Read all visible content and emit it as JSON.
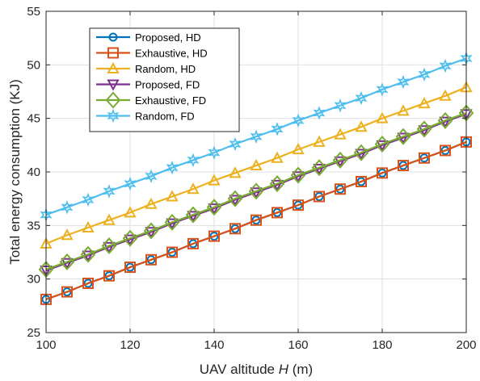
{
  "chart_data": {
    "type": "line",
    "xlabel_prefix": "UAV altitude ",
    "xlabel_var": "H",
    "xlabel_suffix": " (m)",
    "ylabel": "Total energy consumption (KJ)",
    "xlim": [
      100,
      200
    ],
    "ylim": [
      25,
      55
    ],
    "xticks": [
      100,
      120,
      140,
      160,
      180,
      200
    ],
    "yticks": [
      25,
      30,
      35,
      40,
      45,
      50,
      55
    ],
    "grid": true,
    "legend_position": "top-left",
    "x": [
      100,
      105,
      110,
      115,
      120,
      125,
      130,
      135,
      140,
      145,
      150,
      155,
      160,
      165,
      170,
      175,
      180,
      185,
      190,
      195,
      200
    ],
    "series": [
      {
        "name": "Proposed, HD",
        "color": "#0072BD",
        "marker": "circle",
        "values": [
          28.1,
          28.8,
          29.6,
          30.3,
          31.1,
          31.8,
          32.5,
          33.3,
          34.0,
          34.7,
          35.5,
          36.2,
          36.9,
          37.7,
          38.4,
          39.1,
          39.9,
          40.6,
          41.3,
          42.0,
          42.8
        ]
      },
      {
        "name": "Exhaustive, HD",
        "color": "#D95319",
        "marker": "square",
        "values": [
          28.1,
          28.8,
          29.6,
          30.3,
          31.1,
          31.8,
          32.5,
          33.3,
          34.0,
          34.7,
          35.5,
          36.2,
          36.9,
          37.7,
          38.4,
          39.1,
          39.9,
          40.6,
          41.3,
          42.0,
          42.8
        ]
      },
      {
        "name": "Random, HD",
        "color": "#EDB120",
        "marker": "triangle-up",
        "values": [
          33.3,
          34.1,
          34.8,
          35.5,
          36.2,
          37.0,
          37.7,
          38.4,
          39.2,
          39.9,
          40.6,
          41.3,
          42.1,
          42.8,
          43.5,
          44.2,
          45.0,
          45.7,
          46.4,
          47.1,
          47.9
        ]
      },
      {
        "name": "Proposed, FD",
        "color": "#7E2F8E",
        "marker": "triangle-down",
        "values": [
          30.8,
          31.5,
          32.2,
          33.0,
          33.7,
          34.4,
          35.2,
          35.9,
          36.6,
          37.4,
          38.1,
          38.8,
          39.6,
          40.3,
          41.0,
          41.7,
          42.5,
          43.2,
          43.9,
          44.7,
          45.4
        ]
      },
      {
        "name": "Exhaustive, FD",
        "color": "#77AC30",
        "marker": "diamond",
        "values": [
          30.9,
          31.6,
          32.3,
          33.1,
          33.8,
          34.5,
          35.3,
          36.0,
          36.7,
          37.5,
          38.2,
          38.9,
          39.7,
          40.4,
          41.1,
          41.8,
          42.6,
          43.3,
          44.0,
          44.8,
          45.5
        ]
      },
      {
        "name": "Random, FD",
        "color": "#4DBEEE",
        "marker": "hexagram",
        "values": [
          36.0,
          36.7,
          37.4,
          38.2,
          38.9,
          39.6,
          40.4,
          41.1,
          41.8,
          42.6,
          43.3,
          44.0,
          44.8,
          45.5,
          46.2,
          46.9,
          47.7,
          48.4,
          49.1,
          49.9,
          50.6
        ]
      }
    ]
  }
}
